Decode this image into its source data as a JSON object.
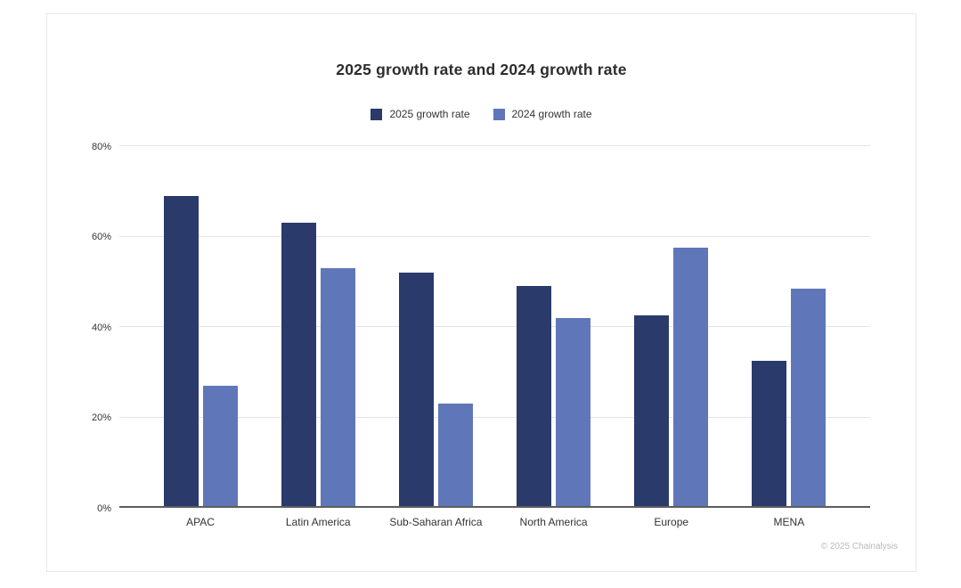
{
  "page": {
    "copyright": "© 2025 Chainalysis"
  },
  "chart_data": {
    "type": "bar",
    "title": "2025 growth rate and 2024 growth rate",
    "categories": [
      "APAC",
      "Latin America",
      "Sub-Saharan Africa",
      "North America",
      "Europe",
      "MENA"
    ],
    "series": [
      {
        "name": "2025 growth rate",
        "color": "#293a6b",
        "values": [
          69,
          63,
          52,
          49,
          42.5,
          32.5
        ]
      },
      {
        "name": "2024 growth rate",
        "color": "#5f77b8",
        "values": [
          27,
          53,
          23,
          42,
          57.5,
          48.5
        ]
      }
    ],
    "xlabel": "",
    "ylabel": "",
    "ylim": [
      0,
      80
    ],
    "yticks": [
      {
        "value": 0,
        "label": "0%"
      },
      {
        "value": 20,
        "label": "20%"
      },
      {
        "value": 40,
        "label": "40%"
      },
      {
        "value": 60,
        "label": "60%"
      },
      {
        "value": 80,
        "label": "80%"
      }
    ],
    "grid": true,
    "legend_position": "top"
  }
}
